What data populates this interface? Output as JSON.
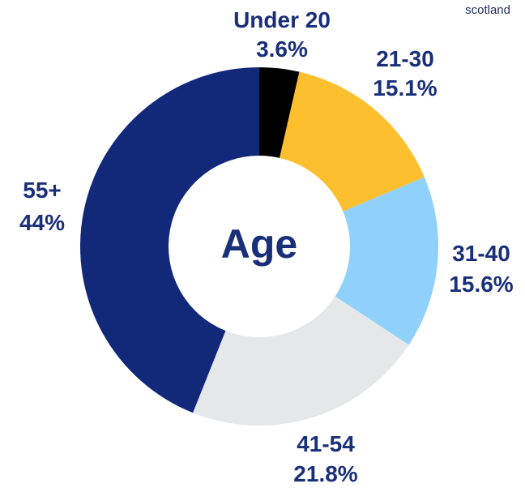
{
  "brand_text": "scotland",
  "chart_data": {
    "type": "pie",
    "center_label": "Age",
    "categories": [
      "Under 20",
      "21-30",
      "31-40",
      "41-54",
      "55+"
    ],
    "values": [
      3.6,
      15.1,
      15.6,
      21.8,
      44
    ],
    "value_labels": [
      "3.6%",
      "15.1%",
      "15.6%",
      "21.8%",
      "44%"
    ],
    "colors": [
      "#000000",
      "#fdbf2d",
      "#8fd1fb",
      "#e6e7e9",
      "#12297a"
    ],
    "start_angle_deg": 0,
    "direction": "clockwise",
    "donut": true
  }
}
